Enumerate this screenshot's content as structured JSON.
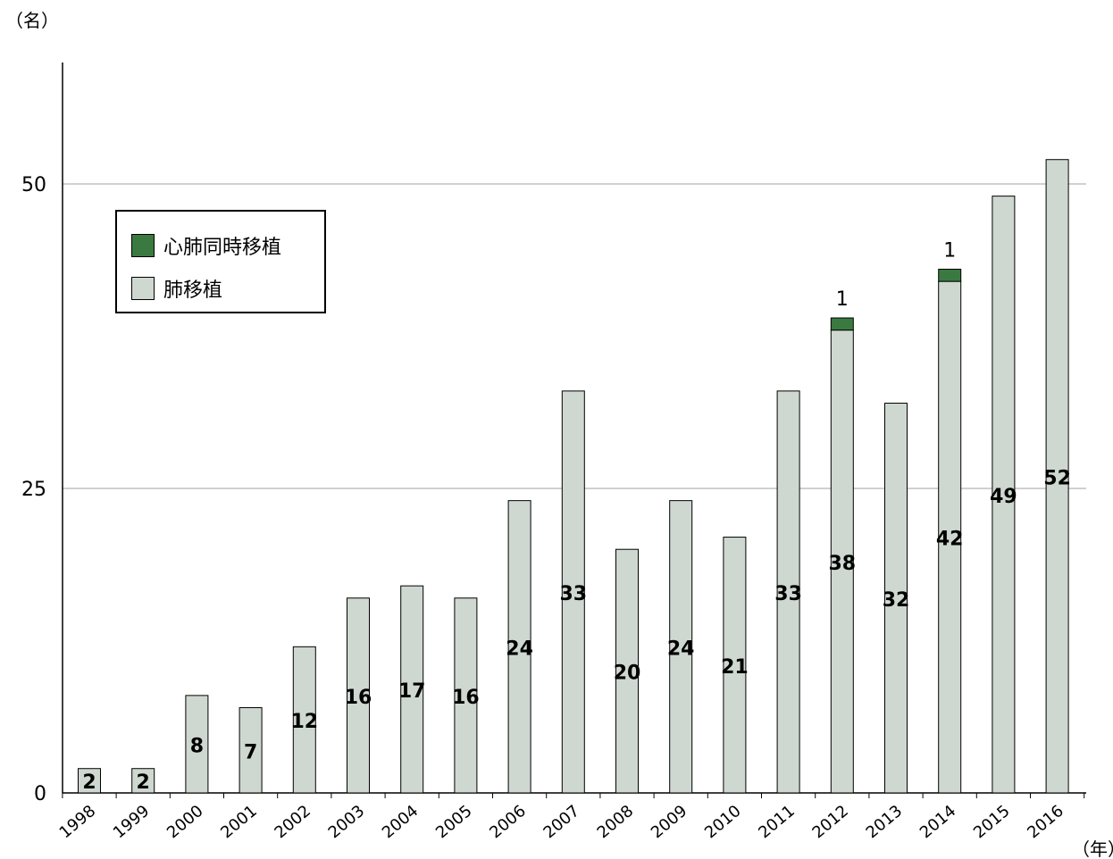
{
  "colors": {
    "lung": "#cfd8d0",
    "heart_lung": "#3a7a40",
    "grid": "#a0a0a0"
  },
  "chart_data": {
    "type": "bar",
    "stacked": true,
    "y_unit_label": "（名）",
    "x_unit_label": "（年）",
    "categories": [
      "1998",
      "1999",
      "2000",
      "2001",
      "2002",
      "2003",
      "2004",
      "2005",
      "2006",
      "2007",
      "2008",
      "2009",
      "2010",
      "2011",
      "2012",
      "2013",
      "2014",
      "2015",
      "2016"
    ],
    "series": [
      {
        "name": "肺移植",
        "values": [
          2,
          2,
          8,
          7,
          12,
          16,
          17,
          16,
          24,
          33,
          20,
          24,
          21,
          33,
          38,
          32,
          42,
          49,
          52
        ]
      },
      {
        "name": "心肺同時移植",
        "values": [
          0,
          0,
          0,
          0,
          0,
          0,
          0,
          0,
          0,
          0,
          0,
          0,
          0,
          0,
          1,
          0,
          1,
          0,
          0
        ]
      }
    ],
    "ylim": [
      0,
      60
    ],
    "yticks": [
      0,
      25,
      50
    ],
    "grid": true,
    "legend_position": "top-left"
  }
}
